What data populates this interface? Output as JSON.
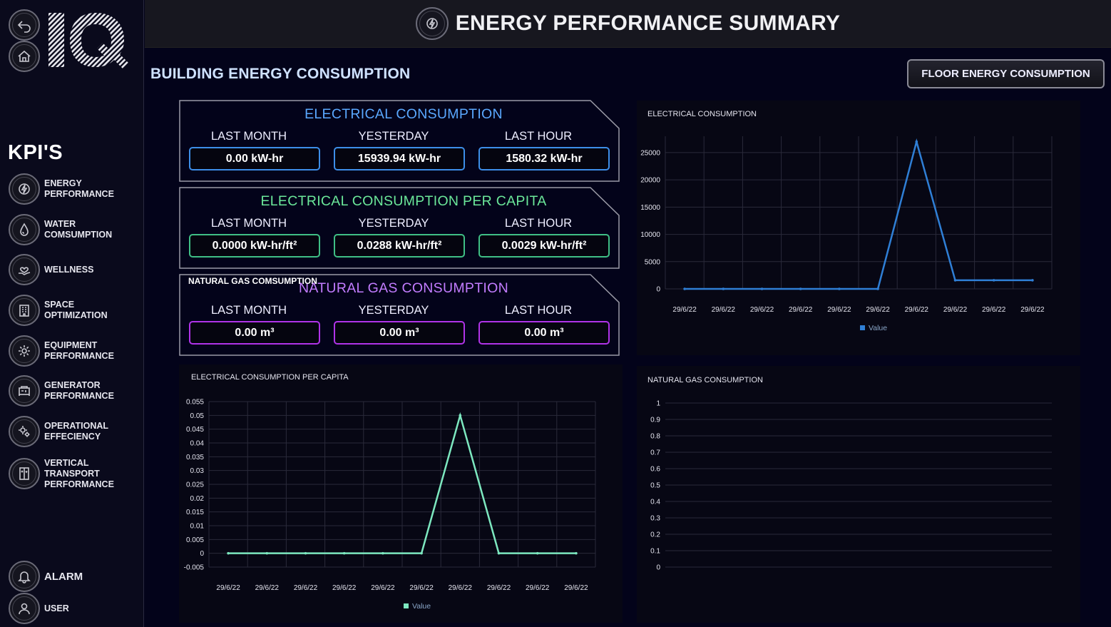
{
  "header": {
    "title": "ENERGY PERFORMANCE SUMMARY",
    "icon": "energy-bolt-icon"
  },
  "sidebar": {
    "top_buttons": [
      {
        "name": "back",
        "icon": "back-arrow-icon"
      },
      {
        "name": "home",
        "icon": "home-icon"
      }
    ],
    "logo_text": "IQ",
    "kpis_title": "KPI'S",
    "items": [
      {
        "label": "ENERGY\nPERFORMANCE",
        "icon": "energy-bolt-icon"
      },
      {
        "label": "WATER\nCOMSUMPTION",
        "icon": "water-drop-icon"
      },
      {
        "label": "WELLNESS",
        "icon": "heart-hand-icon"
      },
      {
        "label": "SPACE\nOPTIMIZATION",
        "icon": "building-icon"
      },
      {
        "label": "EQUIPMENT\nPERFORMANCE",
        "icon": "gear-icon"
      },
      {
        "label": "GENERATOR\nPERFORMANCE",
        "icon": "generator-icon"
      },
      {
        "label": "OPERATIONAL\nEFFECIENCY",
        "icon": "operations-gear-icon"
      },
      {
        "label": "VERTICAL\nTRANSPORT\nPERFORMANCE",
        "icon": "elevator-icon"
      }
    ],
    "bottom_items": [
      {
        "label": "ALARM",
        "icon": "bell-icon"
      },
      {
        "label": "USER",
        "icon": "user-icon"
      }
    ]
  },
  "main": {
    "section_title": "BUILDING ENERGY CONSUMPTION",
    "floor_button": "FLOOR ENERGY CONSUMPTION",
    "columns": [
      "LAST MONTH",
      "YESTERDAY",
      "LAST HOUR"
    ],
    "cards": [
      {
        "title": "ELECTRICAL CONSUMPTION",
        "color": "#5aa8ff",
        "border": "#3d8ee8",
        "values": [
          "0.00 kW-hr",
          "15939.94 kW-hr",
          "1580.32 kW-hr"
        ]
      },
      {
        "title": "ELECTRICAL CONSUMPTION PER CAPITA",
        "color": "#6be89a",
        "border": "#3fbf85",
        "values": [
          "0.0000 kW-hr/ft²",
          "0.0288 kW-hr/ft²",
          "0.0029 kW-hr/ft²"
        ]
      },
      {
        "title": "NATURAL GAS CONSUMPTION",
        "color": "#c27cff",
        "border": "#b033e8",
        "overlay": "NATURAL GAS COMSUMPTION",
        "values": [
          "0.00 m³",
          "0.00 m³",
          "0.00 m³"
        ]
      }
    ]
  },
  "chart_data": [
    {
      "type": "line",
      "title": "ELECTRICAL CONSUMPTION",
      "x": [
        "29/6/22",
        "29/6/22",
        "29/6/22",
        "29/6/22",
        "29/6/22",
        "29/6/22",
        "29/6/22",
        "29/6/22",
        "29/6/22",
        "29/6/22"
      ],
      "series": [
        {
          "name": "Value",
          "values": [
            0,
            0,
            0,
            0,
            0,
            0,
            27000,
            1580,
            1580,
            1580
          ],
          "color": "#2f7fd6"
        }
      ],
      "yticks": [
        0,
        5000,
        10000,
        15000,
        20000,
        25000
      ],
      "ylim": [
        0,
        28000
      ],
      "grid": true,
      "legend": "bottom"
    },
    {
      "type": "line",
      "title": "ELECTRICAL CONSUMPTION PER CAPITA",
      "x": [
        "29/6/22",
        "29/6/22",
        "29/6/22",
        "29/6/22",
        "29/6/22",
        "29/6/22",
        "29/6/22",
        "29/6/22",
        "29/6/22",
        "29/6/22"
      ],
      "series": [
        {
          "name": "Value",
          "values": [
            0,
            0,
            0,
            0,
            0,
            0,
            0.05,
            0,
            0,
            0
          ],
          "color": "#7de8c0"
        }
      ],
      "yticks": [
        -0.005,
        0,
        0.005,
        0.01,
        0.015,
        0.02,
        0.025,
        0.03,
        0.035,
        0.04,
        0.045,
        0.05,
        0.055
      ],
      "ylim": [
        -0.005,
        0.055
      ],
      "grid": true,
      "legend": "bottom"
    },
    {
      "type": "line",
      "title": "NATURAL GAS CONSUMPTION",
      "x": [],
      "series": [],
      "yticks": [
        0,
        0.1,
        0.2,
        0.3,
        0.4,
        0.5,
        0.6,
        0.7,
        0.8,
        0.9,
        1
      ],
      "ylim": [
        0,
        1
      ],
      "grid": true
    }
  ]
}
